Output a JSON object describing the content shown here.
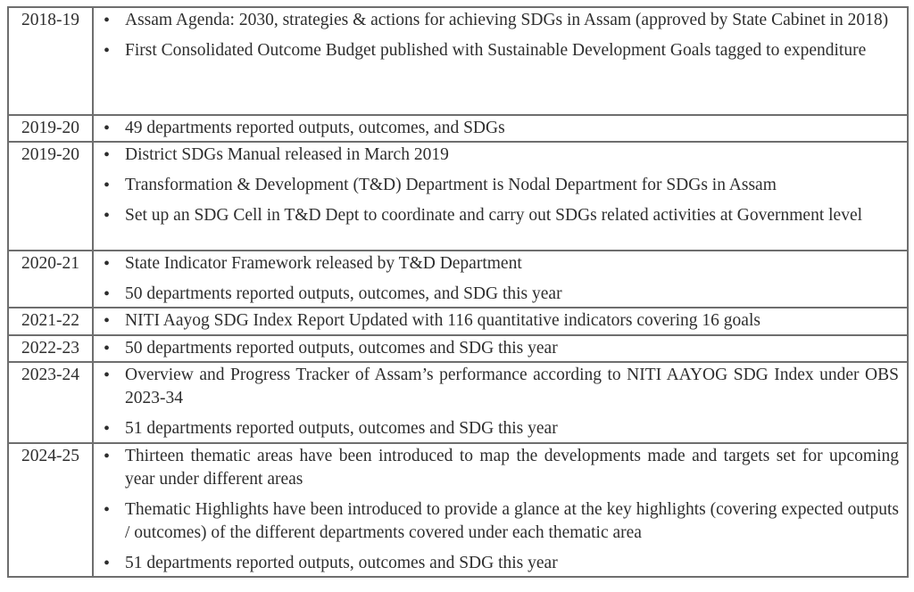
{
  "colors": {
    "text": "#2e2e2e",
    "border": "#6e6e6e",
    "background": "#ffffff"
  },
  "table": {
    "bullet_glyph": "•",
    "rows": [
      {
        "year": "2018-19",
        "bullets": [
          "Assam Agenda: 2030, strategies & actions for achieving SDGs in Assam (approved by State Cabinet in 2018)",
          "First Consolidated Outcome Budget published with Sustainable Development Goals tagged to expenditure"
        ]
      },
      {
        "year": "2019-20",
        "bullets": [
          "49 departments reported outputs, outcomes, and SDGs"
        ]
      },
      {
        "year": "2019-20",
        "bullets": [
          "District SDGs Manual released in March 2019",
          "Transformation & Development (T&D) Department is Nodal Department for SDGs in Assam",
          "Set up an SDG Cell in T&D Dept to coordinate and carry out SDGs related activities at Government level"
        ]
      },
      {
        "year": "2020-21",
        "bullets": [
          "State Indicator Framework released by T&D Department",
          "50 departments reported outputs, outcomes, and SDG this year"
        ]
      },
      {
        "year": "2021-22",
        "bullets": [
          "NITI Aayog SDG Index Report Updated with 116 quantitative indicators covering 16 goals"
        ]
      },
      {
        "year": "2022-23",
        "bullets": [
          "50 departments reported outputs, outcomes and SDG this year"
        ]
      },
      {
        "year": "2023-24",
        "bullets": [
          "Overview and Progress Tracker of Assam’s performance according to NITI AAYOG SDG Index under OBS 2023-34",
          "51 departments reported outputs, outcomes and SDG this year"
        ]
      },
      {
        "year": "2024-25",
        "bullets": [
          "Thirteen thematic areas have been introduced to map the developments made and targets set for upcoming year under different areas",
          "Thematic Highlights have been introduced to provide a glance at the key highlights (covering expected outputs / outcomes) of the different departments covered under each thematic area",
          "51 departments reported outputs, outcomes and SDG this year"
        ]
      }
    ]
  }
}
